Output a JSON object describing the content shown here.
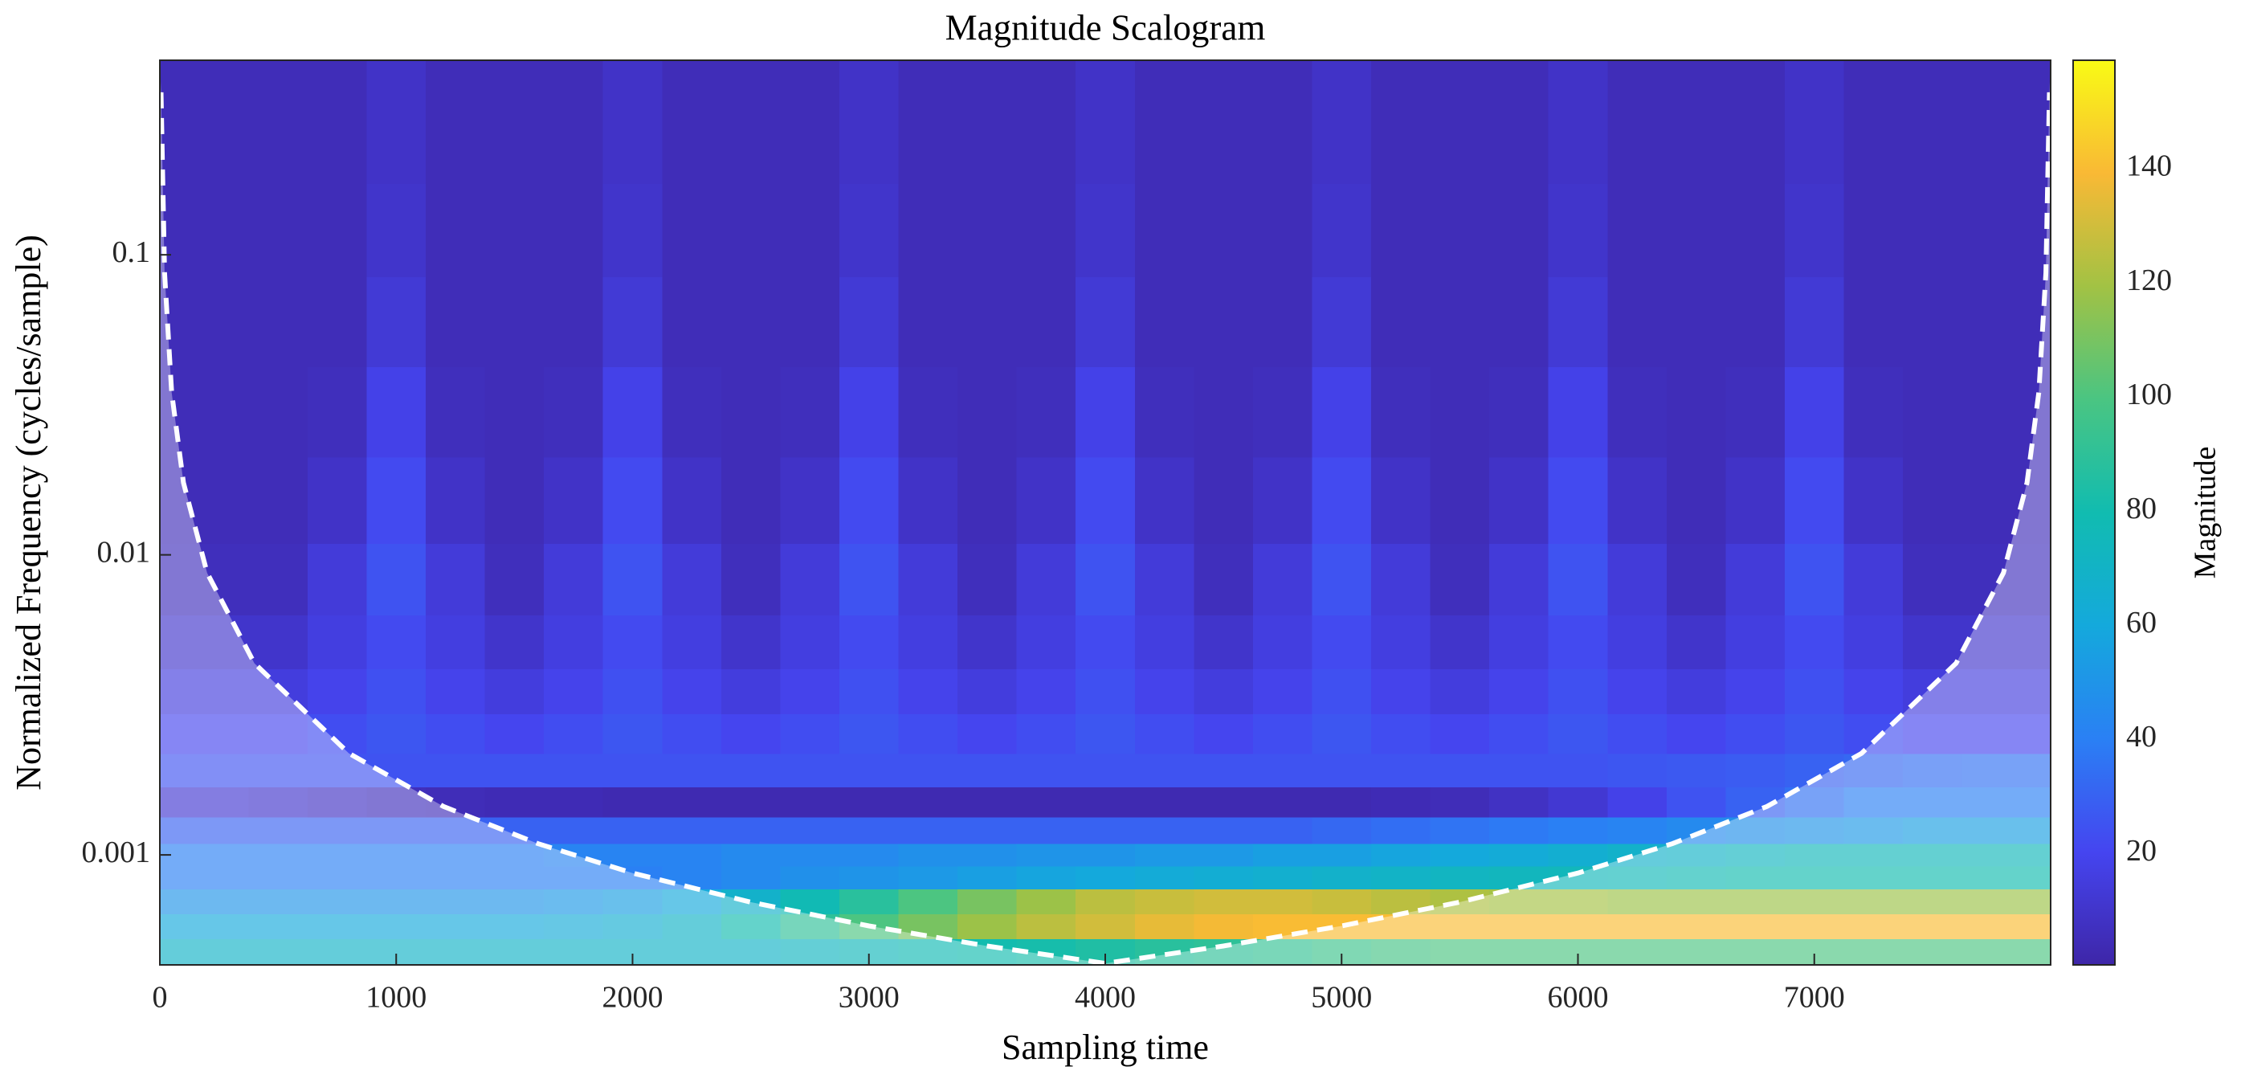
{
  "chart_data": {
    "type": "heatmap",
    "title": "Magnitude Scalogram",
    "xlabel": "Sampling time",
    "ylabel": "Normalized Frequency  (cycles/sample)",
    "colorbar_label": "Magnitude",
    "x": [
      0,
      250,
      500,
      750,
      1000,
      1250,
      1500,
      1750,
      2000,
      2250,
      2500,
      2750,
      3000,
      3250,
      3500,
      3750,
      4000,
      4250,
      4500,
      4750,
      5000,
      5250,
      5500,
      5750,
      6000,
      6250,
      6500,
      6750,
      7000,
      7250,
      7500,
      7750,
      8000
    ],
    "y": [
      0.00048,
      0.00058,
      0.0007,
      0.00085,
      0.001,
      0.0012,
      0.0015,
      0.0019,
      0.0025,
      0.0035,
      0.005,
      0.008,
      0.015,
      0.03,
      0.06,
      0.12,
      0.25
    ],
    "z": [
      [
        70,
        70,
        70,
        70,
        70,
        70,
        70,
        70,
        70,
        70,
        70,
        72,
        75,
        78,
        80,
        82,
        85,
        88,
        90,
        92,
        95,
        98,
        100,
        100,
        100,
        100,
        100,
        100,
        100,
        100,
        100,
        100,
        100
      ],
      [
        60,
        60,
        60,
        60,
        60,
        60,
        60,
        62,
        65,
        70,
        80,
        90,
        100,
        110,
        118,
        125,
        130,
        135,
        138,
        140,
        140,
        140,
        140,
        140,
        140,
        140,
        140,
        140,
        140,
        140,
        140,
        140,
        140
      ],
      [
        50,
        50,
        50,
        50,
        50,
        50,
        50,
        52,
        55,
        60,
        68,
        78,
        88,
        100,
        110,
        118,
        125,
        128,
        130,
        130,
        128,
        125,
        122,
        120,
        120,
        118,
        118,
        118,
        118,
        118,
        118,
        118,
        118
      ],
      [
        40,
        40,
        40,
        40,
        40,
        40,
        40,
        40,
        40,
        42,
        45,
        48,
        50,
        52,
        55,
        58,
        60,
        62,
        64,
        66,
        68,
        70,
        72,
        74,
        75,
        76,
        78,
        80,
        80,
        80,
        80,
        80,
        80
      ],
      [
        40,
        40,
        40,
        40,
        40,
        40,
        40,
        42,
        42,
        42,
        45,
        45,
        45,
        48,
        48,
        50,
        50,
        52,
        52,
        55,
        55,
        58,
        60,
        62,
        65,
        68,
        70,
        72,
        75,
        75,
        75,
        75,
        75
      ],
      [
        30,
        30,
        30,
        30,
        30,
        30,
        30,
        30,
        30,
        30,
        30,
        30,
        30,
        30,
        30,
        30,
        30,
        30,
        30,
        30,
        32,
        34,
        36,
        38,
        40,
        42,
        45,
        48,
        50,
        52,
        55,
        55,
        55
      ],
      [
        12,
        12,
        10,
        8,
        6,
        5,
        4,
        4,
        3,
        3,
        3,
        3,
        3,
        3,
        3,
        3,
        3,
        3,
        3,
        3,
        3,
        4,
        5,
        8,
        12,
        18,
        25,
        30,
        35,
        40,
        40,
        40,
        40
      ],
      [
        25,
        25,
        25,
        25,
        25,
        25,
        25,
        25,
        25,
        25,
        25,
        25,
        25,
        25,
        25,
        25,
        25,
        25,
        25,
        25,
        25,
        25,
        25,
        25,
        25,
        26,
        27,
        28,
        30,
        32,
        34,
        35,
        35
      ],
      [
        20,
        20,
        20,
        23,
        26,
        23,
        20,
        23,
        26,
        23,
        20,
        23,
        26,
        23,
        20,
        23,
        26,
        23,
        20,
        23,
        26,
        23,
        20,
        23,
        26,
        23,
        20,
        23,
        26,
        23,
        20,
        20,
        20
      ],
      [
        15,
        15,
        15,
        19,
        24,
        19,
        15,
        19,
        24,
        19,
        15,
        19,
        24,
        19,
        15,
        19,
        24,
        19,
        15,
        19,
        24,
        19,
        15,
        19,
        24,
        19,
        15,
        19,
        24,
        19,
        15,
        15,
        15
      ],
      [
        10,
        10,
        10,
        16,
        22,
        16,
        10,
        16,
        22,
        16,
        10,
        16,
        22,
        16,
        10,
        16,
        22,
        16,
        10,
        16,
        22,
        16,
        10,
        16,
        22,
        16,
        10,
        16,
        22,
        16,
        10,
        10,
        10
      ],
      [
        6,
        6,
        6,
        14,
        25,
        14,
        6,
        14,
        25,
        14,
        6,
        14,
        25,
        14,
        6,
        14,
        25,
        14,
        6,
        14,
        25,
        14,
        6,
        14,
        25,
        14,
        6,
        14,
        25,
        14,
        6,
        6,
        6
      ],
      [
        5,
        5,
        5,
        9,
        22,
        9,
        5,
        9,
        22,
        9,
        5,
        9,
        22,
        9,
        5,
        9,
        22,
        9,
        5,
        9,
        22,
        9,
        5,
        9,
        22,
        9,
        5,
        9,
        22,
        9,
        5,
        5,
        5
      ],
      [
        5,
        5,
        5,
        6,
        18,
        6,
        5,
        6,
        18,
        6,
        5,
        6,
        18,
        6,
        5,
        6,
        18,
        6,
        5,
        6,
        18,
        6,
        5,
        6,
        18,
        6,
        5,
        6,
        18,
        6,
        5,
        5,
        5
      ],
      [
        5,
        5,
        5,
        5,
        13,
        5,
        5,
        5,
        13,
        5,
        5,
        5,
        13,
        5,
        5,
        5,
        13,
        5,
        5,
        5,
        13,
        5,
        5,
        5,
        13,
        5,
        5,
        5,
        13,
        5,
        5,
        5,
        5
      ],
      [
        5,
        5,
        5,
        5,
        10,
        5,
        5,
        5,
        10,
        5,
        5,
        5,
        10,
        5,
        5,
        5,
        10,
        5,
        5,
        5,
        10,
        5,
        5,
        5,
        10,
        5,
        5,
        5,
        10,
        5,
        5,
        5,
        5
      ],
      [
        5,
        5,
        5,
        5,
        9,
        5,
        5,
        5,
        9,
        5,
        5,
        5,
        9,
        5,
        5,
        5,
        9,
        5,
        5,
        5,
        9,
        5,
        5,
        5,
        9,
        5,
        5,
        5,
        9,
        5,
        5,
        5,
        5
      ]
    ],
    "coi": {
      "x": [
        5,
        20,
        50,
        100,
        200,
        400,
        800,
        1200,
        1600,
        2000,
        2500,
        3000,
        3500,
        4000,
        4500,
        5000,
        5500,
        6000,
        6400,
        6800,
        7200,
        7600,
        7800,
        7900,
        7950,
        7980,
        7995
      ],
      "y": [
        0.348,
        0.087,
        0.0348,
        0.0174,
        0.0087,
        0.00435,
        0.00218,
        0.00145,
        0.00109,
        0.00087,
        0.000696,
        0.00058,
        0.000497,
        0.000435,
        0.000497,
        0.00058,
        0.000696,
        0.00087,
        0.00109,
        0.00145,
        0.00218,
        0.00435,
        0.0087,
        0.0174,
        0.0348,
        0.087,
        0.348
      ]
    },
    "coi_color": "#ffffff",
    "xlim": [
      0,
      8000
    ],
    "xticks": [
      0,
      1000,
      2000,
      3000,
      4000,
      5000,
      6000,
      7000
    ],
    "ylim": [
      0.00043,
      0.445
    ],
    "yticks": [
      0.001,
      0.01,
      0.1
    ],
    "yscale": "log",
    "clim": [
      0.5,
      159
    ],
    "cticks": [
      20,
      40,
      60,
      80,
      100,
      120,
      140
    ],
    "colormap": [
      "#3e26a8",
      "#4545f0",
      "#2a80f4",
      "#14a9dc",
      "#11bcb0",
      "#4ac582",
      "#a2c244",
      "#f9b935",
      "#f9fb15"
    ]
  }
}
